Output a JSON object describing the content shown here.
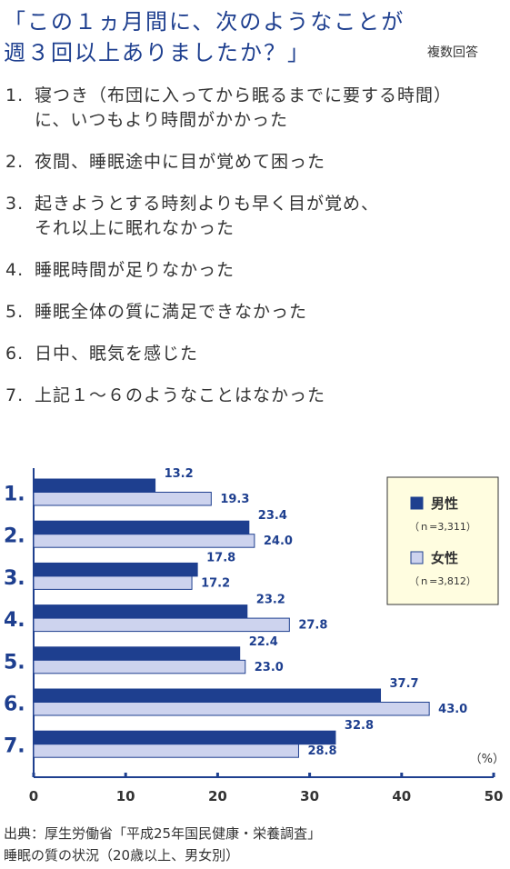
{
  "question": {
    "line1": "「この１ヵ月間に、次のようなことが",
    "line2": "週３回以上ありましたか？」",
    "note": "複数回答"
  },
  "items": [
    {
      "num": "1.",
      "text": "寝つき（布団に入ってから眠るまでに要する時間）\nに、いつもより時間がかかった"
    },
    {
      "num": "2.",
      "text": "夜間、睡眠途中に目が覚めて困った"
    },
    {
      "num": "3.",
      "text": "起きようとする時刻よりも早く目が覚め、\nそれ以上に眠れなかった"
    },
    {
      "num": "4.",
      "text": "睡眠時間が足りなかった"
    },
    {
      "num": "5.",
      "text": "睡眠全体の質に満足できなかった"
    },
    {
      "num": "6.",
      "text": "日中、眠気を感じた"
    },
    {
      "num": "7.",
      "text": "上記１〜６のようなことはなかった"
    }
  ],
  "chart_data": {
    "type": "bar",
    "orientation": "horizontal",
    "categories": [
      "1.",
      "2.",
      "3.",
      "4.",
      "5.",
      "6.",
      "7."
    ],
    "series": [
      {
        "name": "男性",
        "n": "（ｎ=3,311）",
        "color": "#1e3f8f",
        "values": [
          13.2,
          23.4,
          17.8,
          23.2,
          22.4,
          37.7,
          32.8
        ]
      },
      {
        "name": "女性",
        "n": "（ｎ=3,812）",
        "color": "#cdd3ee",
        "values": [
          19.3,
          24.0,
          17.2,
          27.8,
          23.0,
          43.0,
          28.8
        ]
      }
    ],
    "xlim": [
      0,
      50
    ],
    "xticks": [
      0,
      10,
      20,
      30,
      40,
      50
    ],
    "unit": "（%）",
    "legend": "top-right"
  },
  "source": {
    "line1": "出典：厚生労働省「平成25年国民健康・栄養調査」",
    "line2": "睡眠の質の状況（20歳以上、男女別）"
  }
}
